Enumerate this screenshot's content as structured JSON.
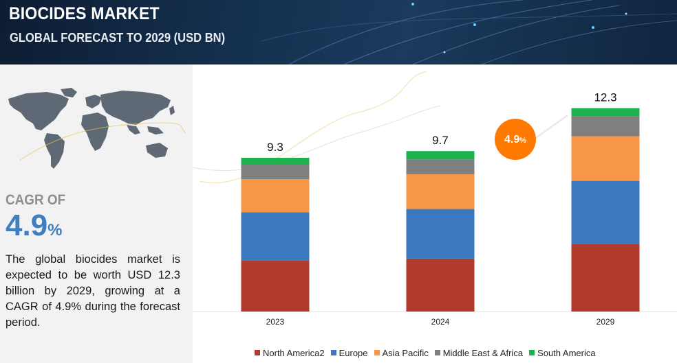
{
  "header": {
    "title": "BIOCIDES MARKET",
    "subtitle": "GLOBAL FORECAST TO 2029 (USD BN)"
  },
  "sidebar": {
    "cagr_label": "CAGR OF",
    "cagr_value": "4.9",
    "cagr_unit": "%",
    "description": "The global biocides market is expected to be worth USD 12.3 billion by 2029, growing at a CAGR of 4.9% during the forecast period."
  },
  "chart_data": {
    "type": "bar",
    "stacked": true,
    "categories": [
      "2023",
      "2024",
      "2029"
    ],
    "totals": [
      9.3,
      9.7,
      12.3
    ],
    "total_labels": [
      "9.3",
      "9.7",
      "12.3"
    ],
    "series": [
      {
        "name": "North America2",
        "color": "#b03a2e",
        "values": [
          3.1,
          3.2,
          4.1
        ]
      },
      {
        "name": "Europe",
        "color": "#3a79bd",
        "values": [
          2.9,
          3.0,
          3.8
        ]
      },
      {
        "name": "Asia Pacific",
        "color": "#f79646",
        "values": [
          2.0,
          2.1,
          2.7
        ]
      },
      {
        "name": "Middle East & Africa",
        "color": "#7f7f7f",
        "values": [
          0.9,
          0.9,
          1.2
        ]
      },
      {
        "name": "South America",
        "color": "#1eb24f",
        "values": [
          0.4,
          0.5,
          0.5
        ]
      }
    ],
    "annotations": [
      {
        "text": "4.9",
        "unit": "%",
        "color": "#ff7a00"
      }
    ],
    "legend_position": "bottom",
    "grid": false
  }
}
